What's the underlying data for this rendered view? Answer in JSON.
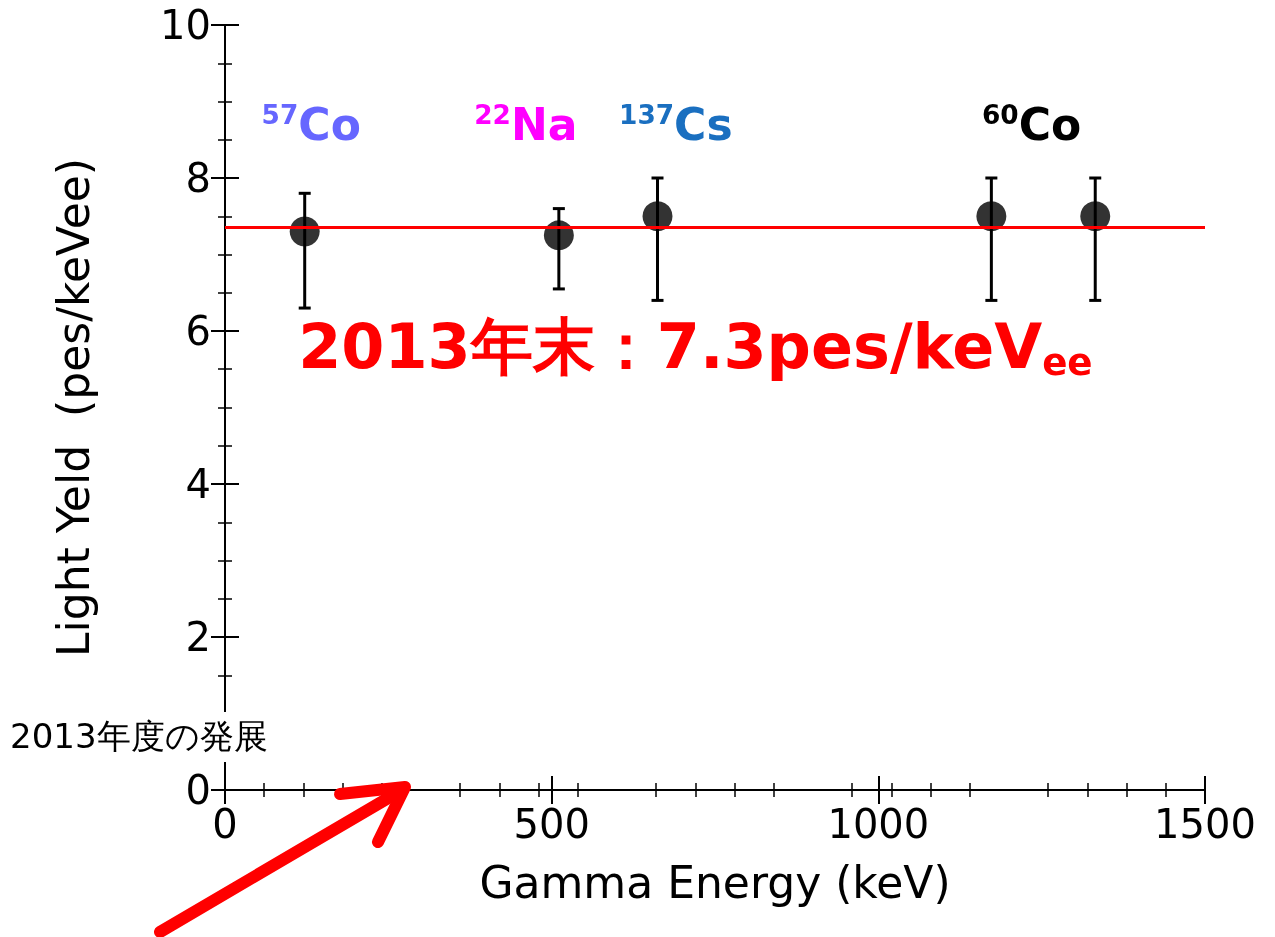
{
  "chart_data": {
    "type": "scatter",
    "xlabel": "Gamma Energy (keV)",
    "ylabel": "Light Yeld  (pes/keVee)",
    "x": [
      122,
      511,
      662,
      1173,
      1332
    ],
    "series": [
      {
        "color": "#000000",
        "values": [
          7.3,
          7.25,
          7.5,
          7.5,
          7.5
        ],
        "errors": [
          [
            6.3,
            7.8
          ],
          [
            6.55,
            7.6
          ],
          [
            6.4,
            8.0
          ],
          [
            6.4,
            8.0
          ],
          [
            6.4,
            8.0
          ]
        ]
      }
    ],
    "marker": "circle",
    "xlim": [
      0,
      1500
    ],
    "xticks": [
      0,
      500,
      1000,
      1500
    ],
    "ylim": [
      0,
      10
    ],
    "yticks": [
      0,
      2,
      4,
      6,
      8,
      10
    ],
    "grid": false,
    "ref_lines": [
      {
        "axis": "y",
        "value": 7.35,
        "color": "#ff0000",
        "line_style": "solid"
      }
    ],
    "annotations": [
      "$^{57}$Co",
      "$^{22}$Na",
      "$^{137}$Cs",
      "$^{60}$Co",
      "2013年末：7.3pes/keV$_{ee}$",
      "2013年度の発展"
    ]
  }
}
